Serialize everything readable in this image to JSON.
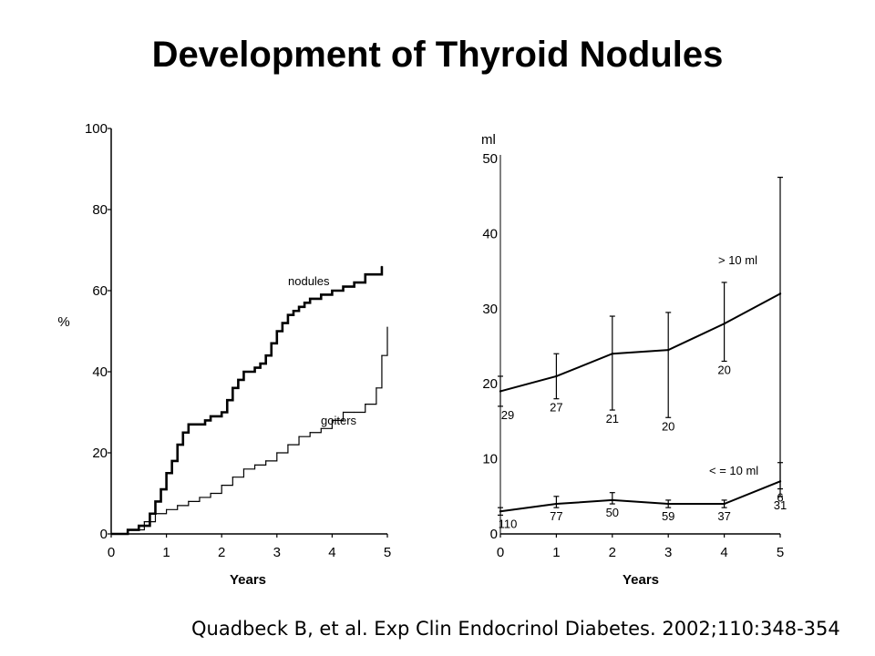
{
  "slide": {
    "title": "Development of Thyroid Nodules",
    "citation": "Quadbeck B, et al. Exp Clin Endocrinol Diabetes. 2002;110:348-354"
  },
  "chart_data": [
    {
      "type": "line",
      "xlabel": "Years",
      "ylabel": "%",
      "xlim": [
        0,
        5
      ],
      "ylim": [
        0,
        100
      ],
      "xticks": [
        0,
        1,
        2,
        3,
        4,
        5
      ],
      "yticks": [
        0,
        20,
        40,
        60,
        80,
        100
      ],
      "series": [
        {
          "name": "nodules",
          "x": [
            0,
            0.3,
            0.5,
            0.7,
            0.8,
            0.9,
            1.0,
            1.1,
            1.2,
            1.3,
            1.4,
            1.5,
            1.7,
            1.8,
            2.0,
            2.1,
            2.2,
            2.3,
            2.4,
            2.5,
            2.6,
            2.7,
            2.8,
            2.9,
            3.0,
            3.1,
            3.2,
            3.3,
            3.4,
            3.5,
            3.6,
            3.8,
            4.0,
            4.2,
            4.4,
            4.6,
            4.8,
            4.9
          ],
          "values": [
            0,
            1,
            2,
            5,
            8,
            11,
            15,
            18,
            22,
            25,
            27,
            27,
            28,
            29,
            30,
            33,
            36,
            38,
            40,
            40,
            41,
            42,
            44,
            47,
            50,
            52,
            54,
            55,
            56,
            57,
            58,
            59,
            60,
            61,
            62,
            64,
            64,
            66
          ],
          "color": "#000000"
        },
        {
          "name": "goiters",
          "x": [
            0,
            0.3,
            0.6,
            0.8,
            1.0,
            1.2,
            1.4,
            1.6,
            1.8,
            2.0,
            2.2,
            2.4,
            2.6,
            2.8,
            3.0,
            3.2,
            3.4,
            3.6,
            3.8,
            4.0,
            4.2,
            4.4,
            4.6,
            4.8,
            4.9,
            5.0
          ],
          "values": [
            0,
            1,
            3,
            5,
            6,
            7,
            8,
            9,
            10,
            12,
            14,
            16,
            17,
            18,
            20,
            22,
            24,
            25,
            26,
            28,
            30,
            30,
            32,
            36,
            44,
            51
          ],
          "color": "#000000"
        }
      ]
    },
    {
      "type": "line",
      "xlabel": "Years",
      "ylabel": "ml",
      "xlim": [
        0,
        5
      ],
      "xticks": [
        0,
        1,
        2,
        3,
        4,
        5
      ],
      "yticks": [
        0,
        10,
        20,
        30,
        40,
        50
      ],
      "series": [
        {
          "name": "> 10 ml",
          "x": [
            0,
            1,
            2,
            3,
            4,
            5
          ],
          "values": [
            19,
            21,
            24,
            24.5,
            28,
            32
          ],
          "error_low": [
            17,
            18,
            16.5,
            15.5,
            23,
            6
          ],
          "error_high": [
            21,
            24,
            29,
            29.5,
            33.5,
            47.5
          ],
          "counts": [
            "29",
            "27",
            "21",
            "20",
            "20",
            "6"
          ],
          "color": "#000000"
        },
        {
          "name": "< = 10 ml",
          "x": [
            0,
            1,
            2,
            3,
            4,
            5
          ],
          "values": [
            3,
            4,
            4.5,
            4,
            4,
            7
          ],
          "error_low": [
            2.5,
            3.5,
            4,
            3.5,
            3.5,
            5
          ],
          "error_high": [
            3.5,
            5,
            5.5,
            4.5,
            4.5,
            9.5
          ],
          "counts": [
            "110",
            "77",
            "50",
            "59",
            "37",
            "31"
          ],
          "color": "#000000"
        }
      ]
    }
  ]
}
